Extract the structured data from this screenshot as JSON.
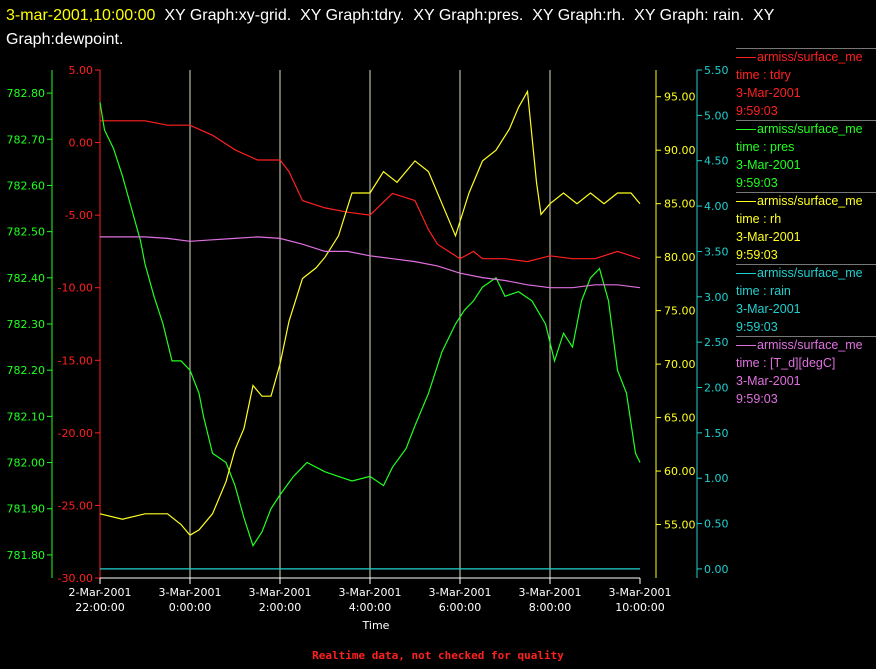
{
  "title": {
    "timestamp": "3-mar-2001,10:00:00",
    "rest": "  XY Graph:xy-grid.  XY Graph:tdry.  XY Graph:pres.  XY Graph:rh.  XY Graph: rain.  XY Graph:dewpoint."
  },
  "footer": "Realtime data, not checked for quality",
  "legend": [
    {
      "source": "armiss/surface_me",
      "line2": "time : tdry",
      "line3": "3-Mar-2001",
      "line4": "9:59:03",
      "color": "#ff2020"
    },
    {
      "source": "armiss/surface_me",
      "line2": "time : pres",
      "line3": "3-Mar-2001",
      "line4": "9:59:03",
      "color": "#20ff20"
    },
    {
      "source": "armiss/surface_me",
      "line2": "time : rh",
      "line3": "3-Mar-2001",
      "line4": "9:59:03",
      "color": "#ffff20"
    },
    {
      "source": "armiss/surface_me",
      "line2": "time : rain",
      "line3": "3-Mar-2001",
      "line4": "9:59:03",
      "color": "#20d0d0"
    },
    {
      "source": "armiss/surface_me",
      "line2": "time : [T_d][degC]",
      "line3": "3-Mar-2001",
      "line4": "9:59:03",
      "color": "#e070e0"
    }
  ],
  "chart_data": {
    "type": "line",
    "xlabel": "Time",
    "x_range_hours": [
      22,
      34
    ],
    "x_ticks": [
      {
        "h": 22,
        "date": "2-Mar-2001",
        "time": "22:00:00"
      },
      {
        "h": 24,
        "date": "3-Mar-2001",
        "time": "0:00:00"
      },
      {
        "h": 26,
        "date": "3-Mar-2001",
        "time": "2:00:00"
      },
      {
        "h": 28,
        "date": "3-Mar-2001",
        "time": "4:00:00"
      },
      {
        "h": 30,
        "date": "3-Mar-2001",
        "time": "6:00:00"
      },
      {
        "h": 32,
        "date": "3-Mar-2001",
        "time": "8:00:00"
      },
      {
        "h": 34,
        "date": "3-Mar-2001",
        "time": "10:00:00"
      }
    ],
    "axes": {
      "pres": {
        "range": [
          781.75,
          782.85
        ],
        "ticks": [
          "782.80",
          "782.70",
          "782.60",
          "782.50",
          "782.40",
          "782.30",
          "782.20",
          "782.10",
          "782.00",
          "781.90",
          "781.80"
        ],
        "color": "#20ff20"
      },
      "tdry": {
        "range": [
          -30,
          5
        ],
        "ticks": [
          "5.00",
          "0.00",
          "-5.00",
          "-10.00",
          "-15.00",
          "-20.00",
          "-25.00",
          "-30.00"
        ],
        "color": "#ff2020"
      },
      "rh": {
        "range": [
          50,
          97.5
        ],
        "ticks": [
          "95.00",
          "90.00",
          "85.00",
          "80.00",
          "75.00",
          "70.00",
          "65.00",
          "60.00",
          "55.00"
        ],
        "color": "#ffff20"
      },
      "rain": {
        "range": [
          -0.1,
          5.5
        ],
        "ticks": [
          "5.50",
          "5.00",
          "4.50",
          "4.00",
          "3.50",
          "3.00",
          "2.50",
          "2.00",
          "1.50",
          "1.00",
          "0.50",
          "0.00"
        ],
        "color": "#20d0d0"
      }
    },
    "series": [
      {
        "name": "tdry",
        "axis": "tdry",
        "color": "#ff2020",
        "x": [
          22,
          22.5,
          23,
          23.5,
          24,
          24.5,
          25,
          25.5,
          26,
          26.2,
          26.5,
          27,
          27.5,
          28,
          28.5,
          29,
          29.3,
          29.5,
          30,
          30.3,
          30.5,
          31,
          31.5,
          32,
          32.5,
          33,
          33.5,
          34
        ],
        "y": [
          1.5,
          1.5,
          1.5,
          1.2,
          1.2,
          0.5,
          -0.5,
          -1.2,
          -1.2,
          -2,
          -4,
          -4.5,
          -4.8,
          -5,
          -3.5,
          -4,
          -6,
          -7,
          -8,
          -7.5,
          -8,
          -8,
          -8.2,
          -7.8,
          -8,
          -8,
          -7.5,
          -8
        ]
      },
      {
        "name": "pres",
        "axis": "pres",
        "color": "#20ff20",
        "x": [
          22,
          22.1,
          22.3,
          22.5,
          22.7,
          22.9,
          23,
          23.2,
          23.4,
          23.6,
          23.8,
          24,
          24.2,
          24.3,
          24.5,
          24.8,
          25,
          25.2,
          25.4,
          25.6,
          25.8,
          26,
          26.3,
          26.6,
          27,
          27.3,
          27.6,
          28,
          28.3,
          28.5,
          28.8,
          29,
          29.3,
          29.6,
          29.9,
          30.1,
          30.3,
          30.5,
          30.8,
          31,
          31.3,
          31.6,
          31.9,
          32.1,
          32.3,
          32.5,
          32.7,
          32.9,
          33.1,
          33.3,
          33.5,
          33.7,
          33.9,
          34
        ],
        "y": [
          782.78,
          782.72,
          782.68,
          782.62,
          782.55,
          782.48,
          782.43,
          782.36,
          782.3,
          782.22,
          782.22,
          782.2,
          782.15,
          782.1,
          782.02,
          782.0,
          781.95,
          781.88,
          781.82,
          781.85,
          781.9,
          781.93,
          781.97,
          782.0,
          781.98,
          781.97,
          781.96,
          781.97,
          781.95,
          781.99,
          782.03,
          782.08,
          782.15,
          782.24,
          782.3,
          782.33,
          782.35,
          782.38,
          782.4,
          782.36,
          782.37,
          782.35,
          782.3,
          782.22,
          782.28,
          782.25,
          782.35,
          782.4,
          782.42,
          782.35,
          782.2,
          782.15,
          782.02,
          782.0
        ]
      },
      {
        "name": "rh",
        "axis": "rh",
        "color": "#ffff20",
        "x": [
          22,
          22.5,
          23,
          23.5,
          23.8,
          24,
          24.2,
          24.5,
          24.8,
          25,
          25.2,
          25.4,
          25.6,
          25.8,
          26,
          26.2,
          26.5,
          26.8,
          27,
          27.3,
          27.6,
          28,
          28.3,
          28.6,
          29,
          29.3,
          29.6,
          29.9,
          30.2,
          30.5,
          30.8,
          31.1,
          31.3,
          31.5,
          31.7,
          31.8,
          32,
          32.3,
          32.6,
          32.9,
          33.2,
          33.5,
          33.8,
          34
        ],
        "y": [
          56,
          55.5,
          56,
          56,
          55,
          54,
          54.5,
          56,
          59,
          62,
          64,
          68,
          67,
          67,
          70,
          74,
          78,
          79,
          80,
          82,
          86,
          86,
          88,
          87,
          89,
          88,
          85,
          82,
          86,
          89,
          90,
          92,
          94,
          95.5,
          87,
          84,
          85,
          86,
          85,
          86,
          85,
          86,
          86,
          85
        ]
      },
      {
        "name": "rain",
        "axis": "rain",
        "color": "#20d0d0",
        "x": [
          22,
          34
        ],
        "y": [
          0,
          0
        ]
      },
      {
        "name": "[T_d][degC]",
        "axis": "tdry",
        "color": "#e070e0",
        "x": [
          22,
          22.5,
          23,
          23.5,
          24,
          24.5,
          25,
          25.5,
          26,
          26.5,
          27,
          27.5,
          28,
          28.5,
          29,
          29.5,
          30,
          30.5,
          31,
          31.5,
          32,
          32.5,
          33,
          33.5,
          34
        ],
        "y": [
          -6.5,
          -6.5,
          -6.5,
          -6.6,
          -6.8,
          -6.7,
          -6.6,
          -6.5,
          -6.6,
          -7,
          -7.5,
          -7.5,
          -7.8,
          -8,
          -8.2,
          -8.5,
          -9,
          -9.3,
          -9.5,
          -9.8,
          -10,
          -10,
          -9.8,
          -9.8,
          -10
        ]
      }
    ]
  }
}
